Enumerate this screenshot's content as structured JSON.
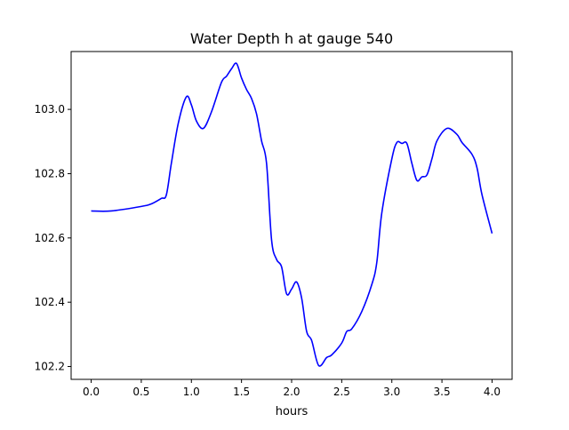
{
  "chart_data": {
    "type": "line",
    "title": "Water Depth h at gauge 540",
    "xlabel": "hours",
    "ylabel": "",
    "xlim": [
      -0.2,
      4.2
    ],
    "ylim": [
      102.16,
      103.18
    ],
    "xticks": [
      0.0,
      0.5,
      1.0,
      1.5,
      2.0,
      2.5,
      3.0,
      3.5,
      4.0
    ],
    "xtick_labels": [
      "0.0",
      "0.5",
      "1.0",
      "1.5",
      "2.0",
      "2.5",
      "3.0",
      "3.5",
      "4.0"
    ],
    "yticks": [
      102.2,
      102.4,
      102.6,
      102.8,
      103.0
    ],
    "ytick_labels": [
      "102.2",
      "102.4",
      "102.6",
      "102.8",
      "103.0"
    ],
    "grid": false,
    "series": [
      {
        "name": "h",
        "color": "#0000ff",
        "x": [
          0,
          0.2,
          0.5,
          0.6,
          0.7,
          0.75,
          0.8,
          0.87,
          0.95,
          1.0,
          1.05,
          1.12,
          1.2,
          1.3,
          1.35,
          1.4,
          1.45,
          1.5,
          1.55,
          1.6,
          1.65,
          1.7,
          1.75,
          1.8,
          1.85,
          1.9,
          1.95,
          2.0,
          2.05,
          2.1,
          2.15,
          2.2,
          2.27,
          2.35,
          2.4,
          2.5,
          2.55,
          2.6,
          2.7,
          2.8,
          2.85,
          2.9,
          3.0,
          3.05,
          3.1,
          3.15,
          3.2,
          3.25,
          3.3,
          3.35,
          3.4,
          3.45,
          3.55,
          3.65,
          3.7,
          3.8,
          3.85,
          3.9,
          4.0
        ],
        "y": [
          102.684,
          102.684,
          102.698,
          102.706,
          102.723,
          102.734,
          102.832,
          102.958,
          103.039,
          103.014,
          102.964,
          102.941,
          102.992,
          103.084,
          103.103,
          103.126,
          103.143,
          103.098,
          103.062,
          103.034,
          102.986,
          102.902,
          102.832,
          102.594,
          102.533,
          102.51,
          102.426,
          102.441,
          102.463,
          102.413,
          102.309,
          102.281,
          102.203,
          102.228,
          102.236,
          102.273,
          102.309,
          102.317,
          102.371,
          102.455,
          102.524,
          102.678,
          102.846,
          102.897,
          102.894,
          102.894,
          102.832,
          102.779,
          102.79,
          102.796,
          102.846,
          102.902,
          102.941,
          102.922,
          102.897,
          102.86,
          102.818,
          102.734,
          102.614
        ]
      }
    ]
  }
}
